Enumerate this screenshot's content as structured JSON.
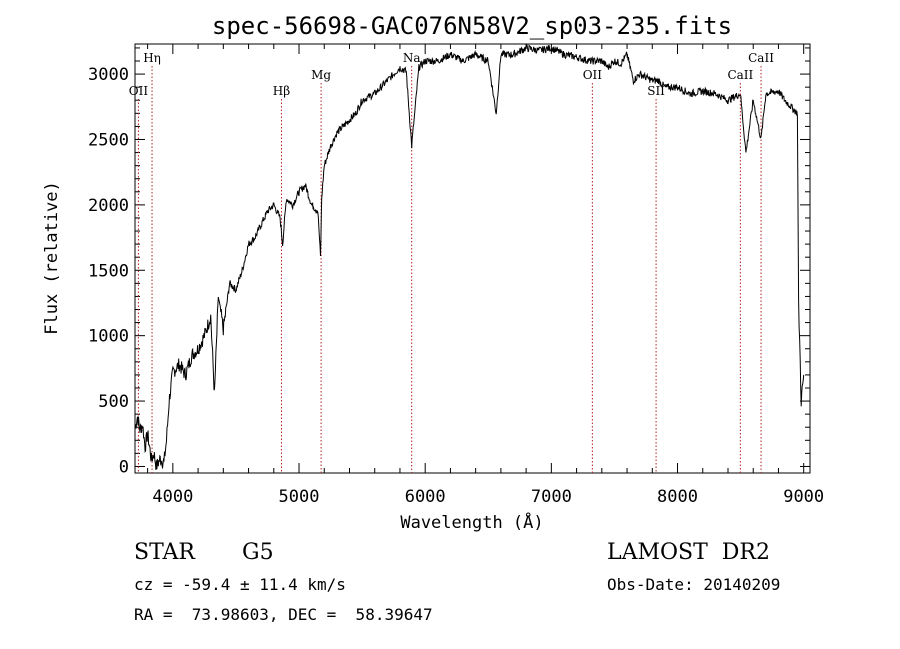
{
  "chart_data": {
    "type": "line",
    "title": "spec-56698-GAC076N58V2_sp03-235.fits",
    "xlabel": "Wavelength (Å)",
    "ylabel": "Flux (relative)",
    "xlim": [
      3700,
      9050
    ],
    "ylim": [
      -50,
      3230
    ],
    "xticks": [
      4000,
      5000,
      6000,
      7000,
      8000,
      9000
    ],
    "yticks": [
      0,
      500,
      1000,
      1500,
      2000,
      2500,
      3000
    ],
    "line_color": "#000000",
    "marker_color": "#b22222",
    "grid": false,
    "series": [
      {
        "x": [
          3700,
          3720,
          3740,
          3760,
          3780,
          3800,
          3830,
          3850,
          3870,
          3900,
          3930,
          3950,
          3970,
          4000,
          4050,
          4100,
          4150,
          4200,
          4250,
          4300,
          4330,
          4360,
          4400,
          4450,
          4500,
          4550,
          4600,
          4650,
          4700,
          4750,
          4800,
          4850,
          4870,
          4900,
          4950,
          5000,
          5050,
          5100,
          5150,
          5170,
          5180,
          5200,
          5250,
          5300,
          5350,
          5400,
          5450,
          5500,
          5600,
          5700,
          5800,
          5850,
          5893,
          5950,
          6000,
          6100,
          6200,
          6300,
          6400,
          6500,
          6563,
          6600,
          6700,
          6800,
          6900,
          7000,
          7100,
          7200,
          7300,
          7400,
          7450,
          7500,
          7550,
          7600,
          7650,
          7700,
          7800,
          7850,
          7900,
          8000,
          8100,
          8200,
          8300,
          8400,
          8498,
          8542,
          8600,
          8662,
          8700,
          8800,
          8850,
          8900,
          8950,
          8960,
          8980,
          9000
        ],
        "y": [
          300,
          380,
          280,
          320,
          150,
          250,
          50,
          100,
          0,
          60,
          30,
          200,
          500,
          720,
          780,
          700,
          850,
          900,
          1000,
          1150,
          550,
          1300,
          1050,
          1400,
          1350,
          1500,
          1700,
          1750,
          1850,
          1950,
          2000,
          1900,
          1700,
          2050,
          2000,
          2100,
          2150,
          2000,
          1950,
          1600,
          2050,
          2300,
          2450,
          2550,
          2600,
          2650,
          2700,
          2800,
          2850,
          2950,
          3050,
          3020,
          2450,
          3050,
          3100,
          3100,
          3150,
          3100,
          3150,
          3100,
          2700,
          3150,
          3150,
          3200,
          3180,
          3200,
          3150,
          3130,
          3100,
          3100,
          3050,
          3100,
          3080,
          3150,
          2950,
          3000,
          2950,
          2950,
          2900,
          2900,
          2850,
          2870,
          2850,
          2800,
          2850,
          2400,
          2800,
          2500,
          2850,
          2870,
          2800,
          2750,
          2700,
          1250,
          500,
          700
        ]
      }
    ],
    "line_markers": [
      {
        "label": "Hη",
        "x": 3835,
        "row": 1
      },
      {
        "label": "OII",
        "x": 3727,
        "row": 3
      },
      {
        "label": "Hβ",
        "x": 4861,
        "row": 3
      },
      {
        "label": "Mg",
        "x": 5175,
        "row": 2
      },
      {
        "label": "Na",
        "x": 5893,
        "row": 1
      },
      {
        "label": "OII",
        "x": 7325,
        "row": 2
      },
      {
        "label": "SII",
        "x": 7830,
        "row": 3
      },
      {
        "label": "CaII",
        "x": 8498,
        "row": 2
      },
      {
        "label": "CaII",
        "x": 8662,
        "row": 1
      }
    ]
  },
  "info": {
    "object_class": "STAR",
    "subclass": "G5",
    "survey": "LAMOST  DR2",
    "redshift_text": "cz = -59.4 ± 11.4 km/s",
    "obs_date": "Obs-Date: 20140209",
    "coords": "RA =  73.98603, DEC =  58.39647"
  }
}
